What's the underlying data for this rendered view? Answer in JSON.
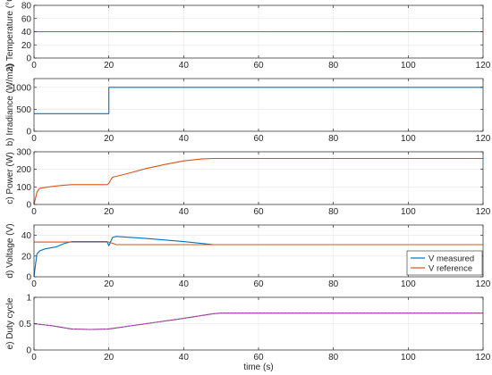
{
  "chart_data": [
    {
      "type": "line",
      "ylabel": "a) Temperature (°C)",
      "xlim": [
        0,
        120
      ],
      "ylim": [
        0,
        80
      ],
      "xticks": [
        0,
        20,
        40,
        60,
        80,
        100,
        120
      ],
      "yticks": [
        0,
        20,
        40,
        60,
        80
      ],
      "grid": true,
      "series": [
        {
          "color": "#2CA02C",
          "x": [
            0,
            120
          ],
          "y": [
            40,
            40
          ]
        }
      ]
    },
    {
      "type": "line",
      "ylabel": "b) Irradiance (W/m2)",
      "xlim": [
        0,
        120
      ],
      "ylim": [
        0,
        1200
      ],
      "xticks": [
        0,
        20,
        40,
        60,
        80,
        100,
        120
      ],
      "yticks": [
        0,
        500,
        1000
      ],
      "grid": true,
      "series": [
        {
          "color": "#0072BD",
          "x": [
            0,
            20,
            20,
            120
          ],
          "y": [
            400,
            400,
            1000,
            1000
          ]
        }
      ]
    },
    {
      "type": "line",
      "ylabel": "c) Power (W)",
      "xlim": [
        0,
        120
      ],
      "ylim": [
        0,
        300
      ],
      "xticks": [
        0,
        20,
        40,
        60,
        80,
        100,
        120
      ],
      "yticks": [
        0,
        100,
        200,
        300
      ],
      "grid": true,
      "series": [
        {
          "color": "#D95319",
          "x": [
            0,
            0.8,
            1.5,
            4,
            7,
            10,
            15,
            19.5,
            20,
            20.5,
            21,
            22,
            25,
            30,
            35,
            40,
            45,
            48,
            120
          ],
          "y": [
            0,
            70,
            92,
            100,
            108,
            113,
            113,
            113,
            120,
            140,
            155,
            160,
            176,
            205,
            228,
            248,
            260,
            262,
            262
          ]
        }
      ]
    },
    {
      "type": "line",
      "ylabel": "d) Voltage (V)",
      "xlim": [
        0,
        120
      ],
      "ylim": [
        0,
        50
      ],
      "xticks": [
        0,
        20,
        40,
        60,
        80,
        100,
        120
      ],
      "yticks": [
        0,
        20,
        40
      ],
      "grid": true,
      "legend": "lower-right",
      "series": [
        {
          "name": "V measured",
          "color": "#0072BD",
          "x": [
            0,
            0.4,
            0.8,
            1.5,
            3,
            6,
            8,
            10,
            15,
            19.5,
            20,
            21,
            22,
            30,
            40,
            48,
            50,
            120
          ],
          "y": [
            0,
            12,
            22,
            25,
            27,
            29,
            32,
            34,
            34,
            34,
            30,
            38,
            39,
            37,
            34,
            31,
            31,
            31
          ]
        },
        {
          "name": "V reference",
          "color": "#D95319",
          "x": [
            0,
            10,
            20,
            22,
            30,
            40,
            48,
            120
          ],
          "y": [
            33.5,
            33.5,
            33.5,
            31,
            31,
            31,
            31,
            31
          ]
        }
      ]
    },
    {
      "type": "line",
      "ylabel": "e) Duty cycle",
      "xlabel": "time (s)",
      "xlim": [
        0,
        120
      ],
      "ylim": [
        0,
        1
      ],
      "xticks": [
        0,
        20,
        40,
        60,
        80,
        100,
        120
      ],
      "yticks": [
        0,
        0.5,
        1
      ],
      "grid": true,
      "series": [
        {
          "color": "#7E2F8E",
          "x": [
            0,
            5,
            10,
            15,
            20,
            30,
            40,
            48,
            50,
            120
          ],
          "y": [
            0.5,
            0.46,
            0.4,
            0.39,
            0.4,
            0.5,
            0.6,
            0.69,
            0.7,
            0.7
          ]
        }
      ]
    }
  ]
}
